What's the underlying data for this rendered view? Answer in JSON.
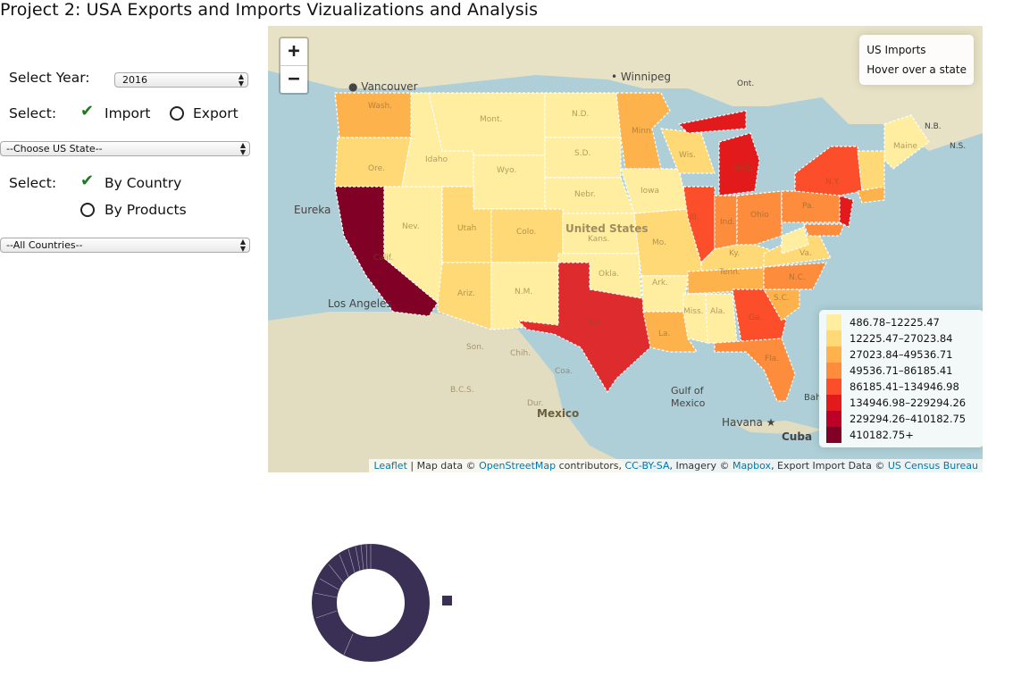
{
  "page": {
    "title": "Project 2: USA Exports and Imports Vizualizations and Analysis"
  },
  "controls": {
    "year_label": "Select Year:",
    "year_value": "2016",
    "select_label": "Select:",
    "import_label": "Import",
    "export_label": "Export",
    "state_dropdown": "--Choose US State--",
    "select_label2": "Select:",
    "by_country_label": "By Country",
    "by_products_label": "By Products",
    "country_dropdown": "--All Countries--"
  },
  "map": {
    "zoom_in": "+",
    "zoom_out": "−",
    "info": {
      "title": "US Imports",
      "hint": "Hover over a state"
    },
    "labels": {
      "vancouver": "Vancouver",
      "winnipeg": "Winnipeg",
      "ont": "Ont.",
      "eureka": "Eureka",
      "los_angeles": "Los Angeles",
      "united_states": "United States",
      "mexico": "Mexico",
      "gulf": "Gulf of",
      "gulf2": "Mexico",
      "havana": "Havana",
      "cuba": "Cuba",
      "ns": "N.S.",
      "nb": "N.B.",
      "bah": "Bah"
    },
    "state_abbr": {
      "wash": "Wash.",
      "ore": "Ore.",
      "calif": "Calif.",
      "idaho": "Idaho",
      "nev": "Nev.",
      "mont": "Mont.",
      "wyo": "Wyo.",
      "utah": "Utah",
      "ariz": "Ariz.",
      "colo": "Colo.",
      "nm": "N.M.",
      "nd": "N.D.",
      "sd": "S.D.",
      "nebr": "Nebr.",
      "kans": "Kans.",
      "okla": "Okla.",
      "tex": "Tex.",
      "minn": "Minn.",
      "iowa": "Iowa",
      "mo": "Mo.",
      "ark": "Ark.",
      "la": "La.",
      "wis": "Wis.",
      "ill": "Ill.",
      "mich": "Mich.",
      "ind": "Ind.",
      "ohio": "Ohio",
      "ky": "Ky.",
      "tenn": "Tenn.",
      "miss": "Miss.",
      "ala": "Ala.",
      "ga": "Ga.",
      "fla": "Fla.",
      "sc": "S.C.",
      "nc": "N.C.",
      "va": "Va.",
      "pa": "Pa.",
      "ny": "N.Y.",
      "maine": "Maine",
      "son": "Son.",
      "chih": "Chih.",
      "coa": "Coa.",
      "bcs": "B.C.S.",
      "dur": "Dur."
    },
    "legend": [
      {
        "label": "486.78–12225.47",
        "color": "#ffeda0"
      },
      {
        "label": "12225.47–27023.84",
        "color": "#fed976"
      },
      {
        "label": "27023.84–49536.71",
        "color": "#feb24c"
      },
      {
        "label": "49536.71–86185.41",
        "color": "#fd8d3c"
      },
      {
        "label": "86185.41–134946.98",
        "color": "#fc4e2a"
      },
      {
        "label": "134946.98–229294.26",
        "color": "#e31a1c"
      },
      {
        "label": "229294.26–410182.75",
        "color": "#bd0026"
      },
      {
        "label": "410182.75+",
        "color": "#800026"
      }
    ],
    "attribution": {
      "leaflet": "Leaflet",
      "t1": " | Map data © ",
      "osm": "OpenStreetMap",
      "t2": " contributors, ",
      "ccbysa": "CC-BY-SA",
      "t3": ", Imagery © ",
      "mapbox": "Mapbox",
      "t4": ", Export Import Data © ",
      "census": "US Census Bureau"
    }
  },
  "donut": {
    "color": "#3a2f55"
  }
}
